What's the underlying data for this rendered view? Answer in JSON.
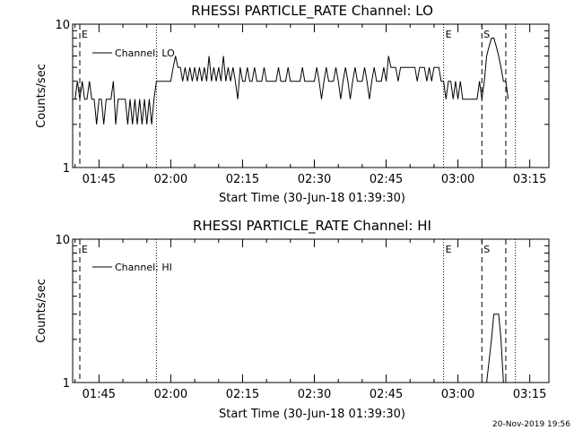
{
  "footer": {
    "timestamp": "20-Nov-2019 19:56"
  },
  "chart_data": [
    {
      "type": "line",
      "title": "RHESSI PARTICLE_RATE Channel: LO",
      "xlabel": "Start Time (30-Jun-18 01:39:30)",
      "ylabel": "Counts/sec",
      "xlim": [
        "01:39:30",
        "03:19:00"
      ],
      "ylim": [
        1,
        10
      ],
      "yscale": "log",
      "x_ticks": [
        "01:45",
        "02:00",
        "02:15",
        "02:30",
        "02:45",
        "03:00",
        "03:15"
      ],
      "y_ticks": [
        "1",
        "10"
      ],
      "legend": {
        "position": "top-left",
        "entries": [
          "Channel: LO"
        ]
      },
      "markers": [
        {
          "time": "01:41:00",
          "style": "dashed",
          "label": "E"
        },
        {
          "time": "01:57:00",
          "style": "dotted",
          "label": ""
        },
        {
          "time": "02:57:00",
          "style": "dotted",
          "label": "E"
        },
        {
          "time": "03:05:00",
          "style": "dashed",
          "label": "S"
        },
        {
          "time": "03:10:00",
          "style": "dashed",
          "label": ""
        },
        {
          "time": "03:12:00",
          "style": "dotted",
          "label": ""
        }
      ],
      "series": [
        {
          "name": "Channel: LO",
          "color": "#000000",
          "points": [
            [
              "01:40:00",
              3
            ],
            [
              "01:40:30",
              4
            ],
            [
              "01:41:00",
              3
            ],
            [
              "01:41:30",
              4
            ],
            [
              "01:42:00",
              3
            ],
            [
              "01:42:30",
              3
            ],
            [
              "01:43:00",
              4
            ],
            [
              "01:43:30",
              3
            ],
            [
              "01:44:00",
              3
            ],
            [
              "01:44:30",
              2
            ],
            [
              "01:45:00",
              3
            ],
            [
              "01:45:30",
              3
            ],
            [
              "01:46:00",
              2
            ],
            [
              "01:46:30",
              3
            ],
            [
              "01:47:00",
              3
            ],
            [
              "01:47:30",
              3
            ],
            [
              "01:48:00",
              4
            ],
            [
              "01:48:30",
              2
            ],
            [
              "01:49:00",
              3
            ],
            [
              "01:49:30",
              3
            ],
            [
              "01:50:00",
              3
            ],
            [
              "01:50:30",
              3
            ],
            [
              "01:51:00",
              2
            ],
            [
              "01:51:30",
              3
            ],
            [
              "01:52:00",
              2
            ],
            [
              "01:52:30",
              3
            ],
            [
              "01:53:00",
              2
            ],
            [
              "01:53:30",
              3
            ],
            [
              "01:54:00",
              2
            ],
            [
              "01:54:30",
              3
            ],
            [
              "01:55:00",
              2
            ],
            [
              "01:55:30",
              3
            ],
            [
              "01:56:00",
              2
            ],
            [
              "01:56:30",
              3
            ],
            [
              "01:57:00",
              4
            ],
            [
              "01:58:00",
              4
            ],
            [
              "01:59:00",
              4
            ],
            [
              "02:00:00",
              4
            ],
            [
              "02:00:30",
              5
            ],
            [
              "02:01:00",
              6
            ],
            [
              "02:01:30",
              5
            ],
            [
              "02:02:00",
              5
            ],
            [
              "02:02:30",
              4
            ],
            [
              "02:03:00",
              5
            ],
            [
              "02:03:30",
              4
            ],
            [
              "02:04:00",
              5
            ],
            [
              "02:04:30",
              4
            ],
            [
              "02:05:00",
              5
            ],
            [
              "02:05:30",
              4
            ],
            [
              "02:06:00",
              5
            ],
            [
              "02:06:30",
              4
            ],
            [
              "02:07:00",
              5
            ],
            [
              "02:07:30",
              4
            ],
            [
              "02:08:00",
              6
            ],
            [
              "02:08:30",
              4
            ],
            [
              "02:09:00",
              5
            ],
            [
              "02:09:30",
              4
            ],
            [
              "02:10:00",
              5
            ],
            [
              "02:10:30",
              4
            ],
            [
              "02:11:00",
              6
            ],
            [
              "02:11:30",
              4
            ],
            [
              "02:12:00",
              5
            ],
            [
              "02:12:30",
              4
            ],
            [
              "02:13:00",
              5
            ],
            [
              "02:13:30",
              4
            ],
            [
              "02:14:00",
              3
            ],
            [
              "02:14:30",
              5
            ],
            [
              "02:15:00",
              4
            ],
            [
              "02:15:30",
              4
            ],
            [
              "02:16:00",
              5
            ],
            [
              "02:16:30",
              4
            ],
            [
              "02:17:00",
              4
            ],
            [
              "02:17:30",
              5
            ],
            [
              "02:18:00",
              4
            ],
            [
              "02:18:30",
              4
            ],
            [
              "02:19:00",
              4
            ],
            [
              "02:19:30",
              5
            ],
            [
              "02:20:00",
              4
            ],
            [
              "02:20:30",
              4
            ],
            [
              "02:21:00",
              4
            ],
            [
              "02:22:00",
              4
            ],
            [
              "02:22:30",
              5
            ],
            [
              "02:23:00",
              4
            ],
            [
              "02:24:00",
              4
            ],
            [
              "02:24:30",
              5
            ],
            [
              "02:25:00",
              4
            ],
            [
              "02:26:00",
              4
            ],
            [
              "02:27:00",
              4
            ],
            [
              "02:27:30",
              5
            ],
            [
              "02:28:00",
              4
            ],
            [
              "02:29:00",
              4
            ],
            [
              "02:30:00",
              4
            ],
            [
              "02:30:30",
              5
            ],
            [
              "02:31:00",
              4
            ],
            [
              "02:31:30",
              3
            ],
            [
              "02:32:00",
              4
            ],
            [
              "02:32:30",
              5
            ],
            [
              "02:33:00",
              4
            ],
            [
              "02:34:00",
              4
            ],
            [
              "02:34:30",
              5
            ],
            [
              "02:35:00",
              4
            ],
            [
              "02:35:30",
              3
            ],
            [
              "02:36:00",
              4
            ],
            [
              "02:36:30",
              5
            ],
            [
              "02:37:00",
              4
            ],
            [
              "02:37:30",
              3
            ],
            [
              "02:38:00",
              4
            ],
            [
              "02:38:30",
              5
            ],
            [
              "02:39:00",
              4
            ],
            [
              "02:40:00",
              4
            ],
            [
              "02:40:30",
              5
            ],
            [
              "02:41:00",
              4
            ],
            [
              "02:41:30",
              3
            ],
            [
              "02:42:00",
              4
            ],
            [
              "02:42:30",
              5
            ],
            [
              "02:43:00",
              4
            ],
            [
              "02:44:00",
              4
            ],
            [
              "02:44:30",
              5
            ],
            [
              "02:45:00",
              4
            ],
            [
              "02:45:30",
              6
            ],
            [
              "02:46:00",
              5
            ],
            [
              "02:46:30",
              5
            ],
            [
              "02:47:00",
              5
            ],
            [
              "02:47:30",
              4
            ],
            [
              "02:48:00",
              5
            ],
            [
              "02:49:00",
              5
            ],
            [
              "02:50:00",
              5
            ],
            [
              "02:51:00",
              5
            ],
            [
              "02:51:30",
              4
            ],
            [
              "02:52:00",
              5
            ],
            [
              "02:53:00",
              5
            ],
            [
              "02:53:30",
              4
            ],
            [
              "02:54:00",
              5
            ],
            [
              "02:54:30",
              4
            ],
            [
              "02:55:00",
              5
            ],
            [
              "02:56:00",
              5
            ],
            [
              "02:56:30",
              4
            ],
            [
              "02:57:00",
              4
            ],
            [
              "02:57:30",
              3
            ],
            [
              "02:58:00",
              4
            ],
            [
              "02:58:30",
              4
            ],
            [
              "02:59:00",
              3
            ],
            [
              "02:59:30",
              4
            ],
            [
              "03:00:00",
              3
            ],
            [
              "03:00:30",
              4
            ],
            [
              "03:01:00",
              3
            ],
            [
              "03:02:00",
              3
            ],
            [
              "03:03:00",
              3
            ],
            [
              "03:04:00",
              3
            ],
            [
              "03:04:30",
              4
            ],
            [
              "03:05:00",
              3
            ],
            [
              "03:05:30",
              4
            ],
            [
              "03:06:00",
              6
            ],
            [
              "03:06:30",
              7
            ],
            [
              "03:07:00",
              8
            ],
            [
              "03:07:30",
              8
            ],
            [
              "03:08:00",
              7
            ],
            [
              "03:08:30",
              6
            ],
            [
              "03:09:00",
              5
            ],
            [
              "03:09:30",
              4
            ],
            [
              "03:10:00",
              4
            ],
            [
              "03:10:30",
              3
            ]
          ]
        }
      ]
    },
    {
      "type": "line",
      "title": "RHESSI PARTICLE_RATE Channel: HI",
      "xlabel": "Start Time (30-Jun-18 01:39:30)",
      "ylabel": "Counts/sec",
      "xlim": [
        "01:39:30",
        "03:19:00"
      ],
      "ylim": [
        1,
        10
      ],
      "yscale": "log",
      "x_ticks": [
        "01:45",
        "02:00",
        "02:15",
        "02:30",
        "02:45",
        "03:00",
        "03:15"
      ],
      "y_ticks": [
        "1",
        "10"
      ],
      "legend": {
        "position": "top-left",
        "entries": [
          "Channel: HI"
        ]
      },
      "markers": [
        {
          "time": "01:41:00",
          "style": "dashed",
          "label": "E"
        },
        {
          "time": "01:57:00",
          "style": "dotted",
          "label": ""
        },
        {
          "time": "02:57:00",
          "style": "dotted",
          "label": "E"
        },
        {
          "time": "03:05:00",
          "style": "dashed",
          "label": "S"
        },
        {
          "time": "03:10:00",
          "style": "dashed",
          "label": ""
        },
        {
          "time": "03:12:00",
          "style": "dotted",
          "label": ""
        }
      ],
      "series": [
        {
          "name": "Channel: HI",
          "color": "#000000",
          "points": [
            [
              "03:06:00",
              1
            ],
            [
              "03:07:00",
              2
            ],
            [
              "03:07:30",
              3
            ],
            [
              "03:08:30",
              3
            ],
            [
              "03:09:00",
              2
            ],
            [
              "03:09:30",
              1
            ]
          ]
        }
      ]
    }
  ]
}
